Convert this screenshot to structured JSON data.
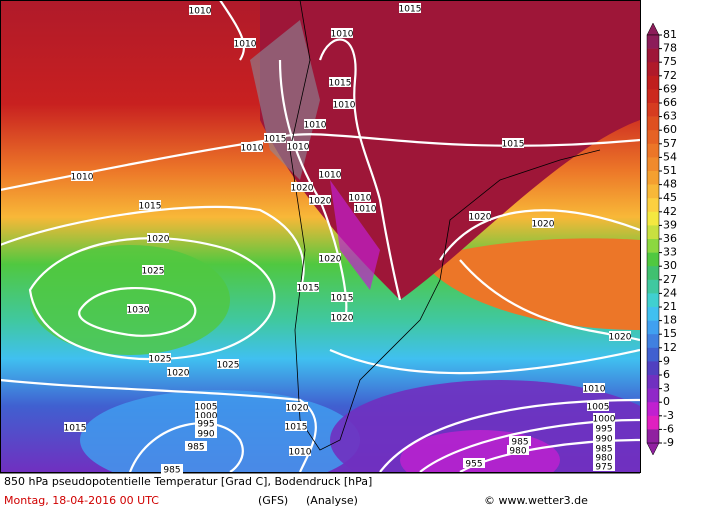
{
  "map": {
    "isobar_labels": [
      "1010",
      "1015",
      "1010",
      "1010",
      "1015",
      "1010",
      "1010",
      "1015",
      "1010",
      "1010",
      "1010",
      "1015",
      "1010",
      "1020",
      "1020",
      "1010",
      "1010",
      "1015",
      "1020",
      "1020",
      "1020",
      "1025",
      "1020",
      "1015",
      "1015",
      "1020",
      "1030",
      "1020",
      "1025",
      "1025",
      "1020",
      "1010",
      "1005",
      "1000",
      "995",
      "990",
      "1005",
      "1000",
      "995",
      "990",
      "1015",
      "1020",
      "1015",
      "985",
      "1010",
      "985",
      "980",
      "985",
      "980",
      "975",
      "955",
      "985"
    ],
    "colorbar": {
      "levels": [
        81,
        78,
        75,
        72,
        69,
        66,
        63,
        60,
        57,
        54,
        51,
        48,
        45,
        42,
        39,
        36,
        33,
        30,
        27,
        24,
        21,
        18,
        15,
        12,
        9,
        6,
        3,
        0,
        -3,
        -6,
        -9
      ],
      "colors": [
        "#8c1d5a",
        "#9e1638",
        "#b01a2a",
        "#c01e1e",
        "#cc2a1e",
        "#d63c20",
        "#de5020",
        "#e66224",
        "#ec7628",
        "#f08a2c",
        "#f4a030",
        "#f8b838",
        "#fcd040",
        "#f4e840",
        "#c8e040",
        "#8cd840",
        "#50c840",
        "#40c070",
        "#40c8a0",
        "#40d0d0",
        "#40c0f0",
        "#40a0f0",
        "#4080e0",
        "#4060d0",
        "#5040c0",
        "#7030c0",
        "#9028c8",
        "#c020d0",
        "#e020c0",
        "#9020a0"
      ]
    }
  },
  "footer": {
    "title": "850 hPa pseudopotentielle Temperatur [Grad C], Bodendruck [hPa]",
    "date": "Montag, 18-04-2016  00 UTC",
    "model": "(GFS)",
    "run": "(Analyse)",
    "credit": "© www.wetter3.de"
  }
}
